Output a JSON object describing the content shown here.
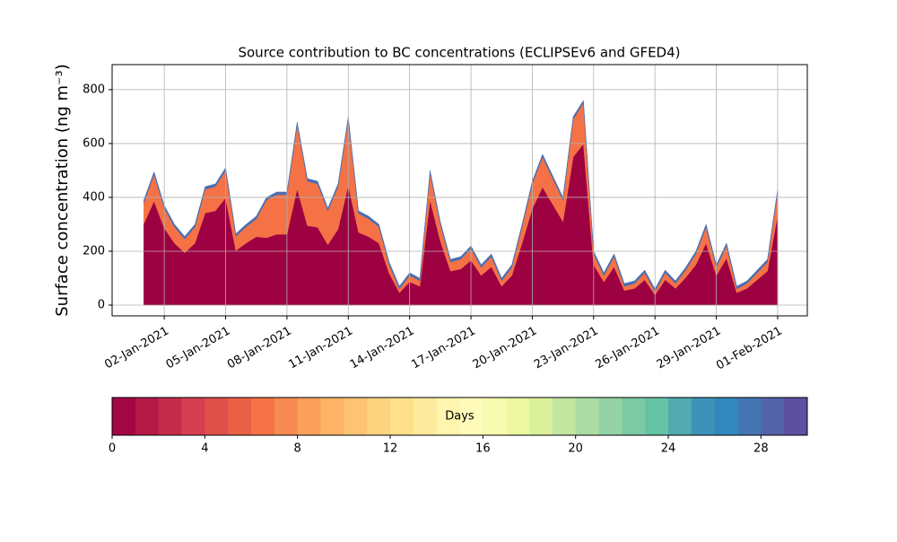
{
  "chart_data": {
    "type": "area",
    "stacked": true,
    "title": "Source contribution to BC concentrations (ECLIPSEv6 and GFED4)",
    "y_label": "Surface concentration (ng m⁻³)",
    "x": [
      1,
      1.5,
      2,
      2.5,
      3,
      3.5,
      4,
      4.5,
      5,
      5.5,
      6,
      6.5,
      7,
      7.5,
      8,
      8.5,
      9,
      9.5,
      10,
      10.5,
      11,
      11.5,
      12,
      12.5,
      13,
      13.5,
      14,
      14.5,
      15,
      15.5,
      16,
      16.5,
      17,
      17.5,
      18,
      18.5,
      19,
      19.5,
      20,
      20.5,
      21,
      21.5,
      22,
      22.5,
      23,
      23.5,
      24,
      24.5,
      25,
      25.5,
      26,
      26.5,
      27,
      27.5,
      28,
      28.5,
      29,
      29.5,
      30,
      30.5,
      31,
      31.5,
      32
    ],
    "series": [
      {
        "color": "#9e0142",
        "values": [
          302,
          386,
          286,
          230,
          194,
          230,
          342,
          350,
          398,
          202,
          230,
          254,
          250,
          263,
          263,
          432,
          295,
          289,
          224,
          282,
          445,
          270,
          254,
          230,
          118,
          46,
          86,
          70,
          390,
          238,
          126,
          134,
          166,
          110,
          142,
          70,
          110,
          230,
          358,
          438,
          374,
          310,
          550,
          598,
          150,
          86,
          142,
          54,
          62,
          94,
          38,
          94,
          62,
          102,
          150,
          230,
          110,
          174,
          46,
          62,
          94,
          126,
          334
        ]
      },
      {
        "color": "#f47245",
        "values": [
          78,
          99,
          74,
          60,
          51,
          60,
          88,
          90,
          102,
          53,
          60,
          66,
          140,
          147,
          147,
          238,
          165,
          161,
          126,
          158,
          245,
          70,
          66,
          60,
          32,
          14,
          24,
          20,
          100,
          62,
          34,
          36,
          44,
          30,
          38,
          20,
          30,
          60,
          92,
          112,
          96,
          80,
          140,
          152,
          40,
          24,
          38,
          16,
          18,
          26,
          12,
          26,
          18,
          28,
          40,
          60,
          30,
          46,
          14,
          18,
          26,
          34,
          86
        ]
      },
      {
        "color": "#4a6fb0",
        "values": [
          10,
          10,
          10,
          10,
          10,
          10,
          10,
          10,
          10,
          10,
          10,
          10,
          10,
          10,
          10,
          10,
          10,
          10,
          10,
          10,
          10,
          10,
          10,
          10,
          10,
          10,
          10,
          10,
          10,
          10,
          10,
          10,
          10,
          10,
          10,
          10,
          10,
          10,
          10,
          10,
          10,
          10,
          10,
          10,
          10,
          10,
          10,
          10,
          10,
          10,
          10,
          10,
          10,
          10,
          10,
          10,
          10,
          10,
          10,
          10,
          10,
          10,
          10
        ]
      }
    ],
    "xlim": [
      -0.55,
      33.45
    ],
    "xticks": [
      {
        "value": 2,
        "label": "02-Jan-2021"
      },
      {
        "value": 5,
        "label": "05-Jan-2021"
      },
      {
        "value": 8,
        "label": "08-Jan-2021"
      },
      {
        "value": 11,
        "label": "11-Jan-2021"
      },
      {
        "value": 14,
        "label": "14-Jan-2021"
      },
      {
        "value": 17,
        "label": "17-Jan-2021"
      },
      {
        "value": 20,
        "label": "20-Jan-2021"
      },
      {
        "value": 23,
        "label": "23-Jan-2021"
      },
      {
        "value": 26,
        "label": "26-Jan-2021"
      },
      {
        "value": 29,
        "label": "29-Jan-2021"
      },
      {
        "value": 32,
        "label": "01-Feb-2021"
      }
    ],
    "ylim": [
      -40,
      893
    ],
    "yticks": [
      0,
      200,
      400,
      600,
      800
    ],
    "grid": true,
    "colorbar": {
      "label": "Days",
      "lim": [
        0,
        30
      ],
      "ticks": [
        0,
        4,
        8,
        12,
        16,
        20,
        24,
        28
      ],
      "colors": [
        "#a20643",
        "#b41947",
        "#c52c4b",
        "#d53e4f",
        "#e0504a",
        "#ea6045",
        "#f47245",
        "#f78a51",
        "#faa05a",
        "#fdb466",
        "#fdc474",
        "#fed380",
        "#fee08b",
        "#feeb9d",
        "#fff5ae",
        "#fffbba",
        "#f6fbb0",
        "#ecf7a0",
        "#daf09b",
        "#c2e6a0",
        "#abdda4",
        "#93d3a5",
        "#7bc9a5",
        "#66c2a5",
        "#52a9b0",
        "#3d92b8",
        "#3288bd",
        "#4375b3",
        "#5462a8",
        "#5e4fa2"
      ]
    }
  }
}
